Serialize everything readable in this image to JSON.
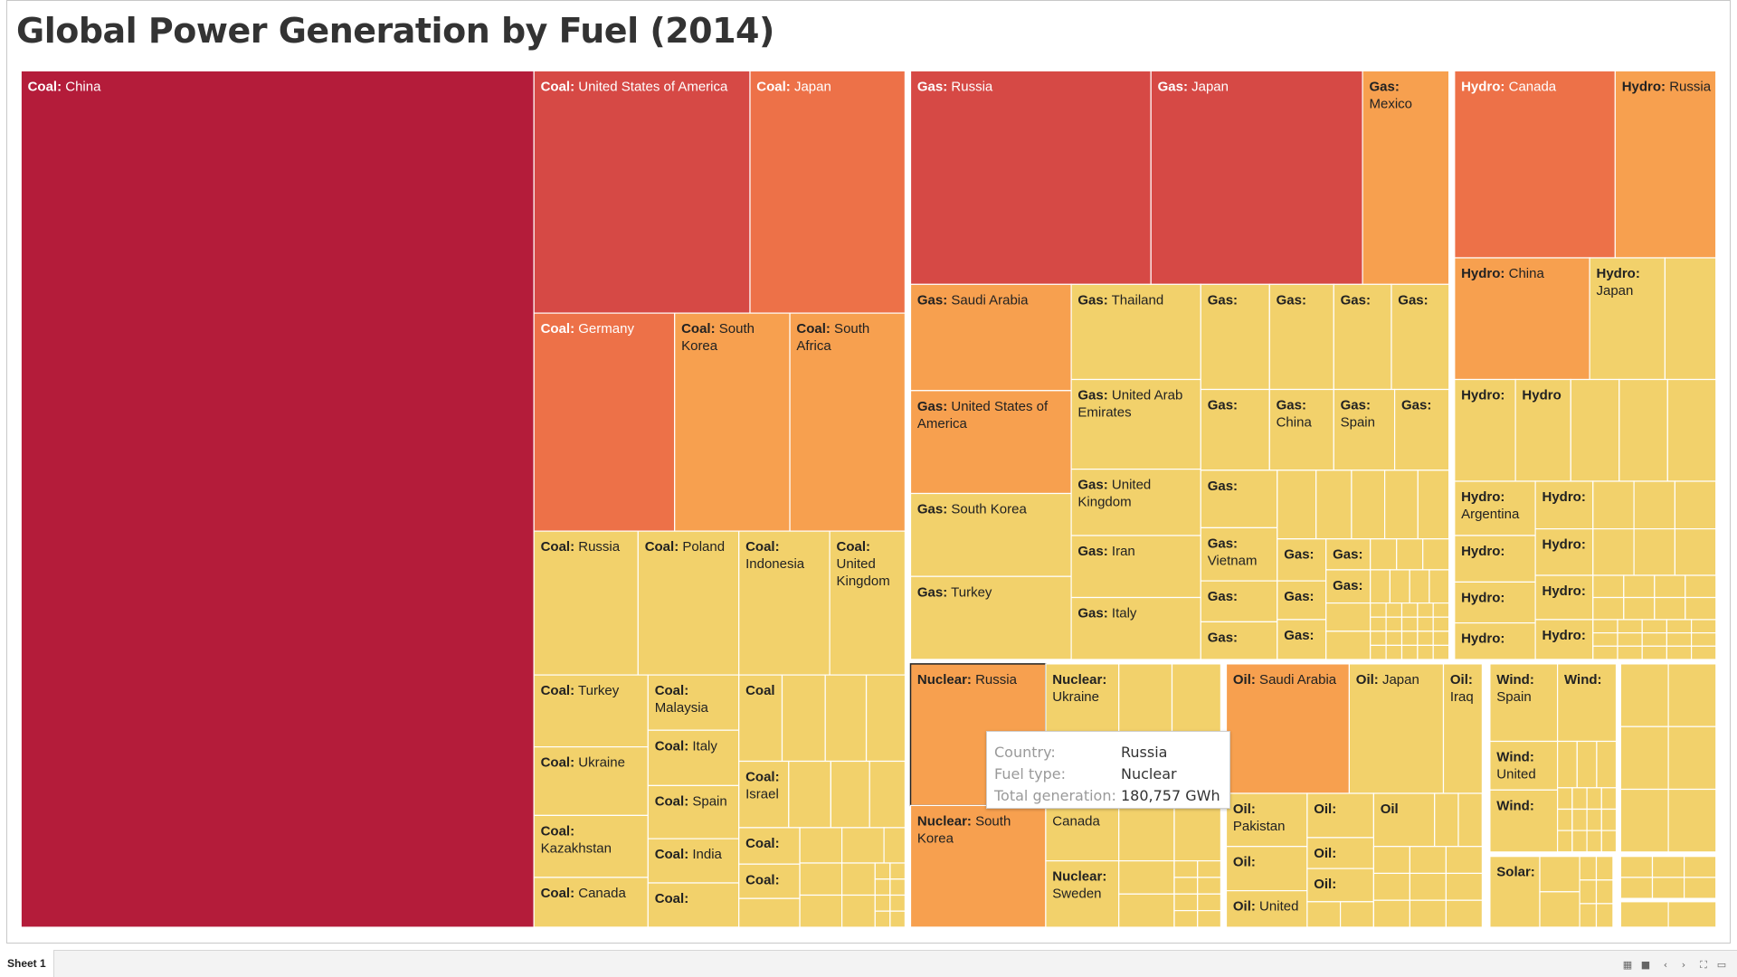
{
  "title": "Global Power Generation by Fuel (2014)",
  "sheet_tab": "Sheet 1",
  "tooltip": {
    "country_label": "Country:",
    "country_value": "Russia",
    "fuel_label": "Fuel type:",
    "fuel_value": "Nuclear",
    "total_label": "Total generation:",
    "total_value": "180,757 GWh"
  },
  "colors": {
    "scale": [
      "#F2D16B",
      "#F7A04F",
      "#ED7148",
      "#D64945",
      "#B41C3A"
    ]
  },
  "chart_data": {
    "type": "treemap",
    "title": "Global Power Generation by Fuel (2014)",
    "groups": [
      "Coal",
      "Gas",
      "Hydro",
      "Nuclear",
      "Oil",
      "Wind",
      "Solar"
    ],
    "labeled_tiles": [
      {
        "fuel": "Coal",
        "country": "China"
      },
      {
        "fuel": "Coal",
        "country": "United States of America"
      },
      {
        "fuel": "Coal",
        "country": "Japan"
      },
      {
        "fuel": "Coal",
        "country": "Germany"
      },
      {
        "fuel": "Coal",
        "country": "South Korea"
      },
      {
        "fuel": "Coal",
        "country": "South Africa"
      },
      {
        "fuel": "Coal",
        "country": "Russia"
      },
      {
        "fuel": "Coal",
        "country": "Poland"
      },
      {
        "fuel": "Coal",
        "country": "Indonesia"
      },
      {
        "fuel": "Coal",
        "country": "United Kingdom"
      },
      {
        "fuel": "Coal",
        "country": "Turkey"
      },
      {
        "fuel": "Coal",
        "country": "Malaysia"
      },
      {
        "fuel": "Coal",
        "country": "Italy"
      },
      {
        "fuel": "Coal",
        "country": "Ukraine"
      },
      {
        "fuel": "Coal",
        "country": "Spain"
      },
      {
        "fuel": "Coal",
        "country": "Israel"
      },
      {
        "fuel": "Coal",
        "country": "Kazakhstan"
      },
      {
        "fuel": "Coal",
        "country": "India"
      },
      {
        "fuel": "Coal",
        "country": "Canada"
      },
      {
        "fuel": "Gas",
        "country": "Russia"
      },
      {
        "fuel": "Gas",
        "country": "Japan"
      },
      {
        "fuel": "Gas",
        "country": "Mexico"
      },
      {
        "fuel": "Gas",
        "country": "Saudi Arabia"
      },
      {
        "fuel": "Gas",
        "country": "Thailand"
      },
      {
        "fuel": "Gas",
        "country": "United States of America"
      },
      {
        "fuel": "Gas",
        "country": "United Arab Emirates"
      },
      {
        "fuel": "Gas",
        "country": "United Kingdom"
      },
      {
        "fuel": "Gas",
        "country": "South Korea"
      },
      {
        "fuel": "Gas",
        "country": "Iran"
      },
      {
        "fuel": "Gas",
        "country": "Turkey"
      },
      {
        "fuel": "Gas",
        "country": "Italy"
      },
      {
        "fuel": "Gas",
        "country": "China"
      },
      {
        "fuel": "Gas",
        "country": "Spain"
      },
      {
        "fuel": "Gas",
        "country": "Vietnam"
      },
      {
        "fuel": "Hydro",
        "country": "Canada"
      },
      {
        "fuel": "Hydro",
        "country": "Russia"
      },
      {
        "fuel": "Hydro",
        "country": "China"
      },
      {
        "fuel": "Hydro",
        "country": "Japan"
      },
      {
        "fuel": "Hydro",
        "country": "Argentina"
      },
      {
        "fuel": "Nuclear",
        "country": "Russia"
      },
      {
        "fuel": "Nuclear",
        "country": "Ukraine"
      },
      {
        "fuel": "Nuclear",
        "country": "South Korea"
      },
      {
        "fuel": "Nuclear",
        "country": "Canada"
      },
      {
        "fuel": "Nuclear",
        "country": "Sweden"
      },
      {
        "fuel": "Oil",
        "country": "Saudi Arabia"
      },
      {
        "fuel": "Oil",
        "country": "Japan"
      },
      {
        "fuel": "Oil",
        "country": "Iraq"
      },
      {
        "fuel": "Oil",
        "country": "Pakistan"
      },
      {
        "fuel": "Oil",
        "country": "United"
      },
      {
        "fuel": "Wind",
        "country": "Spain"
      },
      {
        "fuel": "Wind",
        "country": "United"
      }
    ],
    "highlighted": {
      "country": "Russia",
      "fuel": "Nuclear",
      "total_generation_gwh": 180757
    }
  }
}
